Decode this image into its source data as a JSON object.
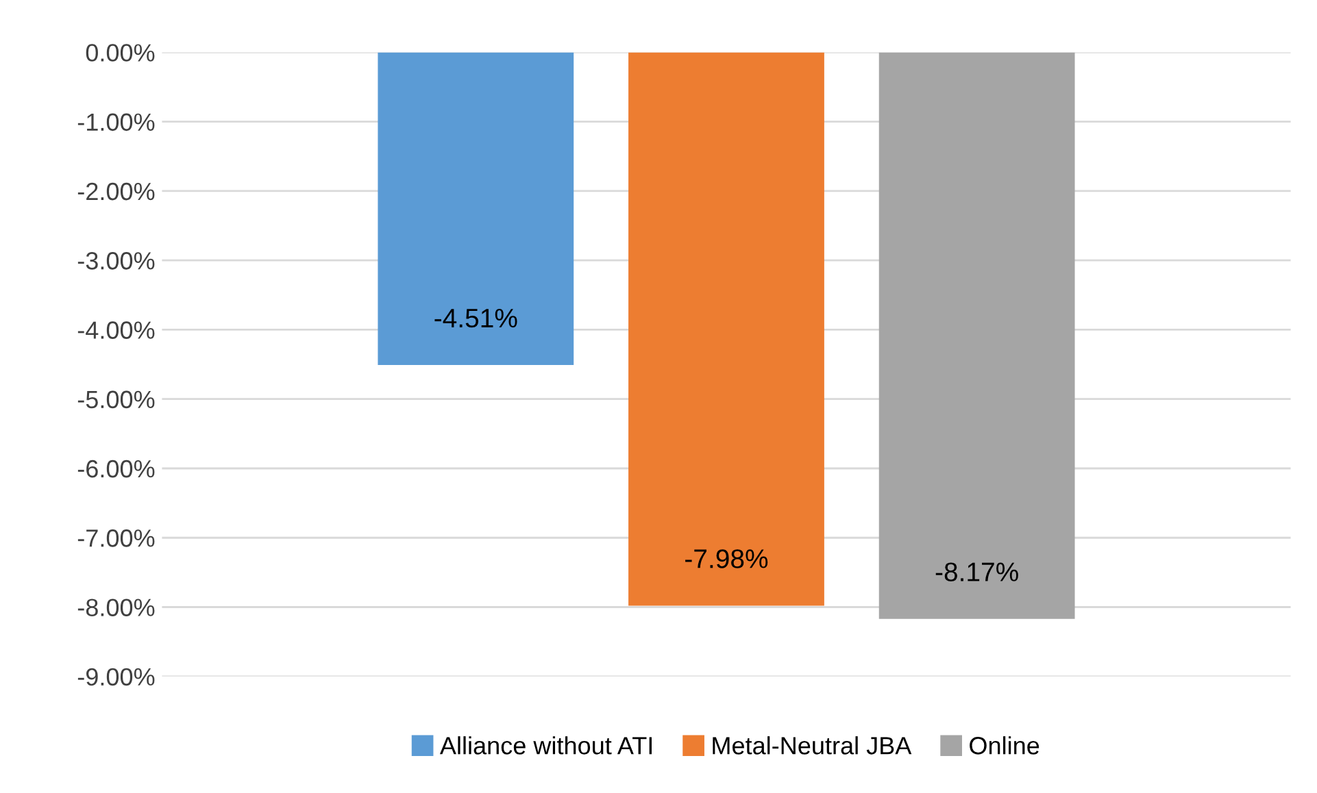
{
  "chart_data": {
    "type": "bar",
    "categories": [
      null
    ],
    "series": [
      {
        "name": "Alliance without ATI",
        "color": "#5b9bd5",
        "values": [
          -4.51
        ],
        "value_labels": [
          "-4.51%"
        ]
      },
      {
        "name": "Metal-Neutral JBA",
        "color": "#ed7d31",
        "values": [
          -7.98
        ],
        "value_labels": [
          "-7.98%"
        ]
      },
      {
        "name": "Online",
        "color": "#a5a5a5",
        "values": [
          -8.17
        ],
        "value_labels": [
          "-8.17%"
        ]
      }
    ],
    "ylim": [
      -9,
      0
    ],
    "yticks": [
      {
        "value": 0,
        "label": "0.00%"
      },
      {
        "value": -1,
        "label": "-1.00%"
      },
      {
        "value": -2,
        "label": "-2.00%"
      },
      {
        "value": -3,
        "label": "-3.00%"
      },
      {
        "value": -4,
        "label": "-4.00%"
      },
      {
        "value": -5,
        "label": "-5.00%"
      },
      {
        "value": -6,
        "label": "-6.00%"
      },
      {
        "value": -7,
        "label": "-7.00%"
      },
      {
        "value": -8,
        "label": "-8.00%"
      },
      {
        "value": -9,
        "label": "-9.00%"
      }
    ],
    "grid": "y",
    "legend": "bottom"
  }
}
